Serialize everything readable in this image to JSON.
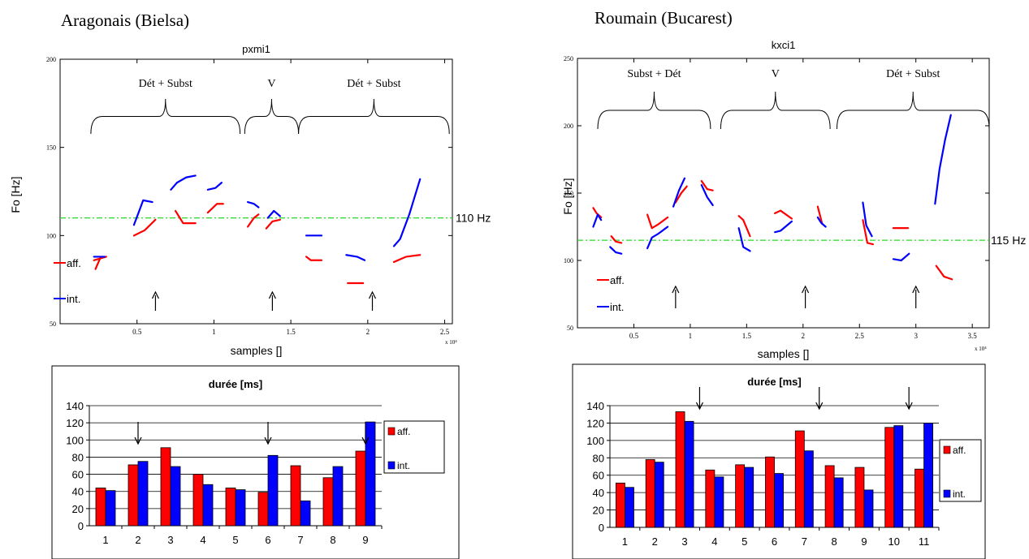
{
  "panels": [
    {
      "heading": "Aragonais (Bielsa)",
      "f0": {
        "title": "pxmi1",
        "ylabel": "Fo [Hz]",
        "xlabel": "samples []",
        "xmultiplier": "x 10⁴",
        "xlim": [
          0,
          2.55
        ],
        "ylim": [
          50,
          200
        ],
        "yticks": [
          50,
          100,
          150,
          200
        ],
        "xticks": [
          0.5,
          1,
          1.5,
          2,
          2.5
        ],
        "xticklabels": [
          "0.5",
          "1",
          "1.5",
          "2",
          "2.5"
        ],
        "reference": {
          "value": 110,
          "label": "110 Hz",
          "color": "#22dd22"
        },
        "legend": [
          "aff.",
          "int."
        ],
        "groups": [
          {
            "label": "Dét + Subst",
            "from": 0.2,
            "to": 1.17
          },
          {
            "label": "V",
            "from": 1.2,
            "to": 1.55
          },
          {
            "label": "Dét + Subst",
            "from": 1.55,
            "to": 2.53
          }
        ],
        "arrows": [
          0.62,
          1.38,
          2.03
        ],
        "red_segments": [
          [
            [
              0.22,
              86
            ],
            [
              0.3,
              88
            ]
          ],
          [
            [
              0.26,
              87
            ],
            [
              0.23,
              81
            ]
          ],
          [
            [
              0.48,
              100
            ],
            [
              0.55,
              103
            ],
            [
              0.62,
              109
            ]
          ],
          [
            [
              0.75,
              114
            ],
            [
              0.8,
              107
            ],
            [
              0.88,
              107
            ]
          ],
          [
            [
              0.96,
              113
            ],
            [
              1.02,
              118
            ],
            [
              1.06,
              118
            ]
          ],
          [
            [
              1.22,
              105
            ],
            [
              1.26,
              110
            ],
            [
              1.29,
              112
            ]
          ],
          [
            [
              1.34,
              104
            ],
            [
              1.38,
              108
            ],
            [
              1.43,
              109
            ]
          ],
          [
            [
              1.6,
              88
            ],
            [
              1.63,
              86
            ],
            [
              1.7,
              86
            ]
          ],
          [
            [
              1.87,
              73
            ],
            [
              1.97,
              73
            ]
          ],
          [
            [
              2.17,
              85
            ],
            [
              2.25,
              88
            ],
            [
              2.34,
              89
            ]
          ]
        ],
        "blue_segments": [
          [
            [
              0.22,
              88
            ],
            [
              0.29,
              88
            ]
          ],
          [
            [
              0.48,
              106
            ],
            [
              0.51,
              113
            ],
            [
              0.54,
              120
            ],
            [
              0.6,
              119
            ]
          ],
          [
            [
              0.72,
              126
            ],
            [
              0.76,
              130
            ],
            [
              0.82,
              133
            ],
            [
              0.88,
              134
            ]
          ],
          [
            [
              0.96,
              126
            ],
            [
              1.01,
              127
            ],
            [
              1.05,
              130
            ]
          ],
          [
            [
              1.22,
              119
            ],
            [
              1.26,
              118
            ],
            [
              1.29,
              116
            ]
          ],
          [
            [
              1.35,
              110
            ],
            [
              1.39,
              114
            ],
            [
              1.43,
              111
            ]
          ],
          [
            [
              1.6,
              100
            ],
            [
              1.7,
              100
            ]
          ],
          [
            [
              1.86,
              89
            ],
            [
              1.93,
              88
            ],
            [
              1.98,
              86
            ]
          ],
          [
            [
              2.17,
              94
            ],
            [
              2.21,
              98
            ],
            [
              2.27,
              112
            ],
            [
              2.34,
              132
            ]
          ]
        ]
      },
      "bars": {
        "type": "bar",
        "title": "durée [ms]",
        "categories": [
          "1",
          "2",
          "3",
          "4",
          "5",
          "6",
          "7",
          "8",
          "9"
        ],
        "ylim": [
          0,
          140
        ],
        "yticks": [
          0,
          20,
          40,
          60,
          80,
          100,
          120,
          140
        ],
        "series": [
          {
            "name": "aff.",
            "color": "#ff0000",
            "values": [
              44,
              71,
              91,
              60,
              44,
              39,
              70,
              56,
              87
            ]
          },
          {
            "name": "int.",
            "color": "#0000ff",
            "values": [
              41,
              75,
              69,
              48,
              42,
              82,
              29,
              69,
              121
            ]
          }
        ],
        "arrows": [
          2,
          6,
          9
        ]
      }
    },
    {
      "heading": "Roumain (Bucarest)",
      "f0": {
        "title": "kxci1",
        "ylabel": "Fo [Hz]",
        "xlabel": "samples []",
        "xmultiplier": "x 10⁴",
        "xlim": [
          0,
          3.65
        ],
        "ylim": [
          50,
          250
        ],
        "yticks": [
          50,
          100,
          150,
          200,
          250
        ],
        "xticks": [
          0.5,
          1,
          1.5,
          2,
          2.5,
          3,
          3.5
        ],
        "xticklabels": [
          "0.5",
          "1",
          "1.5",
          "2",
          "2.5",
          "3",
          "3.5"
        ],
        "reference": {
          "value": 115,
          "label": "115 Hz",
          "color": "#22dd22"
        },
        "legend": [
          "aff.",
          "int."
        ],
        "groups": [
          {
            "label": "Subst + Dét",
            "from": 0.18,
            "to": 1.18
          },
          {
            "label": "V",
            "from": 1.27,
            "to": 2.24
          },
          {
            "label": "Dét + Subst",
            "from": 2.3,
            "to": 3.65
          }
        ],
        "arrows": [
          0.87,
          2.02,
          3.0
        ],
        "red_segments": [
          [
            [
              0.14,
              139
            ],
            [
              0.17,
              135
            ],
            [
              0.21,
              132
            ]
          ],
          [
            [
              0.3,
              118
            ],
            [
              0.34,
              114
            ],
            [
              0.39,
              113
            ]
          ],
          [
            [
              0.62,
              134
            ],
            [
              0.66,
              124
            ],
            [
              0.72,
              127
            ],
            [
              0.8,
              132
            ]
          ],
          [
            [
              0.87,
              143
            ],
            [
              0.92,
              150
            ],
            [
              0.97,
              155
            ]
          ],
          [
            [
              1.1,
              159
            ],
            [
              1.15,
              153
            ],
            [
              1.2,
              152
            ]
          ],
          [
            [
              1.43,
              133
            ],
            [
              1.47,
              130
            ],
            [
              1.53,
              118
            ]
          ],
          [
            [
              1.75,
              135
            ],
            [
              1.8,
              137
            ],
            [
              1.9,
              131
            ]
          ],
          [
            [
              2.13,
              140
            ],
            [
              2.17,
              127
            ]
          ],
          [
            [
              2.53,
              130
            ],
            [
              2.57,
              113
            ],
            [
              2.62,
              112
            ]
          ],
          [
            [
              2.8,
              124
            ],
            [
              2.93,
              124
            ]
          ],
          [
            [
              3.18,
              96
            ],
            [
              3.25,
              88
            ],
            [
              3.32,
              86
            ]
          ]
        ],
        "blue_segments": [
          [
            [
              0.14,
              125
            ],
            [
              0.18,
              134
            ],
            [
              0.21,
              130
            ]
          ],
          [
            [
              0.29,
              110
            ],
            [
              0.34,
              106
            ],
            [
              0.39,
              105
            ]
          ],
          [
            [
              0.62,
              109
            ],
            [
              0.66,
              117
            ],
            [
              0.72,
              120
            ],
            [
              0.8,
              125
            ]
          ],
          [
            [
              0.85,
              140
            ],
            [
              0.9,
              152
            ],
            [
              0.95,
              161
            ]
          ],
          [
            [
              1.1,
              156
            ],
            [
              1.15,
              147
            ],
            [
              1.2,
              141
            ]
          ],
          [
            [
              1.43,
              124
            ],
            [
              1.47,
              110
            ],
            [
              1.53,
              107
            ]
          ],
          [
            [
              1.75,
              121
            ],
            [
              1.8,
              122
            ],
            [
              1.9,
              129
            ]
          ],
          [
            [
              2.13,
              132
            ],
            [
              2.16,
              128
            ],
            [
              2.2,
              125
            ]
          ],
          [
            [
              2.53,
              143
            ],
            [
              2.56,
              126
            ],
            [
              2.61,
              118
            ]
          ],
          [
            [
              2.8,
              101
            ],
            [
              2.87,
              100
            ],
            [
              2.94,
              105
            ]
          ],
          [
            [
              3.17,
              142
            ],
            [
              3.21,
              168
            ],
            [
              3.26,
              190
            ],
            [
              3.31,
              208
            ]
          ]
        ]
      },
      "bars": {
        "type": "bar",
        "title": "durée [ms]",
        "categories": [
          "1",
          "2",
          "3",
          "4",
          "5",
          "6",
          "7",
          "8",
          "9",
          "10",
          "11"
        ],
        "ylim": [
          0,
          140
        ],
        "yticks": [
          0,
          20,
          40,
          60,
          80,
          100,
          120,
          140
        ],
        "series": [
          {
            "name": "aff.",
            "color": "#ff0000",
            "values": [
              51,
              78,
              133,
              66,
              72,
              81,
              111,
              71,
              69,
              115,
              67
            ]
          },
          {
            "name": "int.",
            "color": "#0000ff",
            "values": [
              46,
              75,
              122,
              58,
              69,
              62,
              88,
              57,
              43,
              117,
              120
            ]
          }
        ],
        "arrows": [
          3.5,
          7.5,
          10.5
        ]
      }
    }
  ],
  "chart_data": [
    {
      "type": "line",
      "title": "pxmi1",
      "xlabel": "samples []",
      "ylabel": "Fo [Hz]",
      "ylim": [
        50,
        200
      ],
      "xlim": [
        0,
        2.55
      ],
      "series": [
        {
          "name": "aff."
        },
        {
          "name": "int."
        }
      ],
      "annotations": [
        "Dét + Subst",
        "V",
        "Dét + Subst",
        "110 Hz"
      ]
    },
    {
      "type": "line",
      "title": "kxci1",
      "xlabel": "samples []",
      "ylabel": "Fo [Hz]",
      "ylim": [
        50,
        250
      ],
      "xlim": [
        0,
        3.65
      ],
      "series": [
        {
          "name": "aff."
        },
        {
          "name": "int."
        }
      ],
      "annotations": [
        "Subst + Dét",
        "V",
        "Dét + Subst",
        "115 Hz"
      ]
    },
    {
      "type": "bar",
      "title": "durée [ms]",
      "categories": [
        "1",
        "2",
        "3",
        "4",
        "5",
        "6",
        "7",
        "8",
        "9"
      ],
      "series": [
        {
          "name": "aff.",
          "values": [
            44,
            71,
            91,
            60,
            44,
            39,
            70,
            56,
            87
          ]
        },
        {
          "name": "int.",
          "values": [
            41,
            75,
            69,
            48,
            42,
            82,
            29,
            69,
            121
          ]
        }
      ],
      "ylim": [
        0,
        140
      ]
    },
    {
      "type": "bar",
      "title": "durée [ms]",
      "categories": [
        "1",
        "2",
        "3",
        "4",
        "5",
        "6",
        "7",
        "8",
        "9",
        "10",
        "11"
      ],
      "series": [
        {
          "name": "aff.",
          "values": [
            51,
            78,
            133,
            66,
            72,
            81,
            111,
            71,
            69,
            115,
            67
          ]
        },
        {
          "name": "int.",
          "values": [
            46,
            75,
            122,
            58,
            69,
            62,
            88,
            57,
            43,
            117,
            120
          ]
        }
      ],
      "ylim": [
        0,
        140
      ]
    }
  ]
}
